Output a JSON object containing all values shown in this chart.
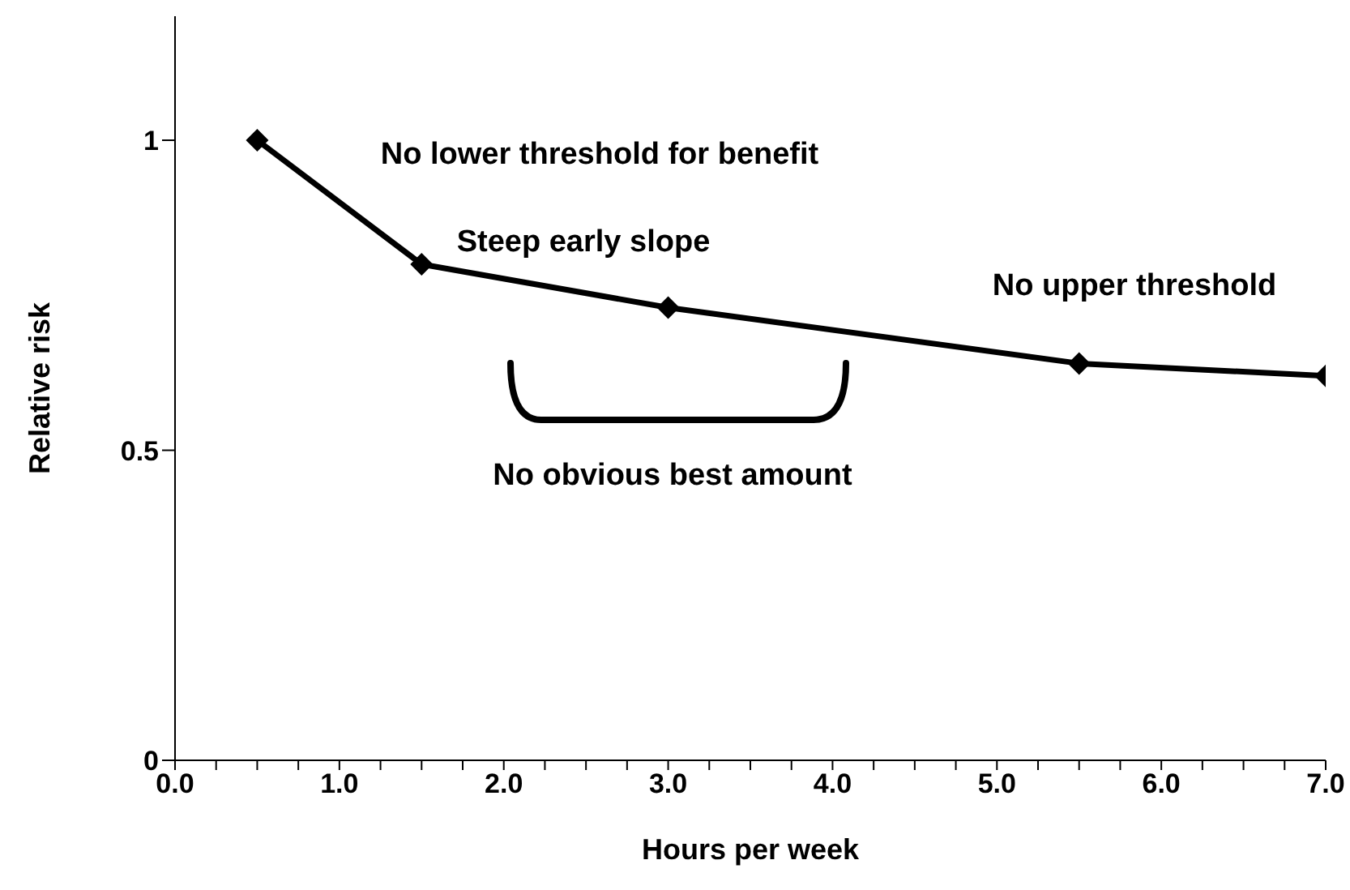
{
  "chart_data": {
    "type": "line",
    "xlabel": "Hours per week",
    "ylabel": "Relative risk",
    "x": [
      0.5,
      1.5,
      3.0,
      5.5,
      7.0
    ],
    "series": [
      {
        "color": "#000000",
        "values": [
          1.0,
          0.8,
          0.73,
          0.64,
          0.62
        ]
      }
    ],
    "xlim": [
      0,
      7
    ],
    "ylim": [
      0,
      1.2
    ],
    "xticks": [
      {
        "value": 0,
        "label": "0.0"
      },
      {
        "value": 0.25,
        "label": null
      },
      {
        "value": 0.5,
        "label": null
      },
      {
        "value": 0.75,
        "label": null
      },
      {
        "value": 1,
        "label": "1.0"
      },
      {
        "value": 1.25,
        "label": null
      },
      {
        "value": 1.5,
        "label": null
      },
      {
        "value": 1.75,
        "label": null
      },
      {
        "value": 2,
        "label": "2.0"
      },
      {
        "value": 2.25,
        "label": null
      },
      {
        "value": 2.5,
        "label": null
      },
      {
        "value": 2.75,
        "label": null
      },
      {
        "value": 3,
        "label": "3.0"
      },
      {
        "value": 3.25,
        "label": null
      },
      {
        "value": 3.5,
        "label": null
      },
      {
        "value": 3.75,
        "label": null
      },
      {
        "value": 4,
        "label": "4.0"
      },
      {
        "value": 4.25,
        "label": null
      },
      {
        "value": 4.5,
        "label": null
      },
      {
        "value": 4.75,
        "label": null
      },
      {
        "value": 5,
        "label": "5.0"
      },
      {
        "value": 5.25,
        "label": null
      },
      {
        "value": 5.5,
        "label": null
      },
      {
        "value": 5.75,
        "label": null
      },
      {
        "value": 6,
        "label": "6.0"
      },
      {
        "value": 6.25,
        "label": null
      },
      {
        "value": 6.5,
        "label": null
      },
      {
        "value": 6.75,
        "label": null
      },
      {
        "value": 7,
        "label": "7.0"
      }
    ],
    "yticks": [
      0,
      0.5,
      1
    ],
    "grid": false,
    "legend": false,
    "marker": "diamond",
    "line_style": "solid",
    "annotations": [
      "No lower threshold for benefit",
      "Steep early slope",
      "No upper threshold",
      "No obvious best amount"
    ]
  }
}
